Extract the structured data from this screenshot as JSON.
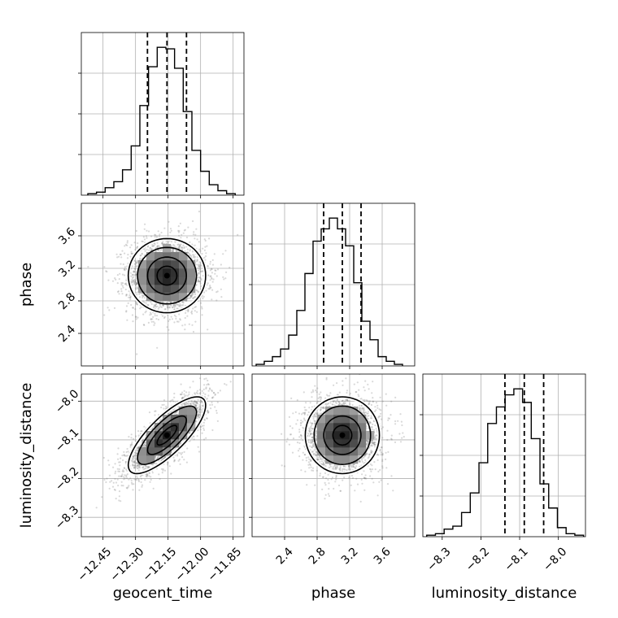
{
  "chart_data": [
    {
      "type": "histogram",
      "panel": "hist-geocent_time",
      "xlabel": "",
      "ylabel": "",
      "xlim": [
        -12.55,
        -11.8
      ],
      "bins_start": -12.52,
      "bin_width": 0.04,
      "counts": [
        1,
        2,
        5,
        9,
        17,
        33,
        60,
        86,
        99,
        98,
        85,
        56,
        30,
        16,
        7,
        3,
        1
      ],
      "quantiles": [
        -12.245,
        -12.155,
        -12.065
      ],
      "grid": true
    },
    {
      "type": "histogram",
      "panel": "hist-phase",
      "xlabel": "",
      "ylabel": "",
      "xlim": [
        2.0,
        4.0
      ],
      "bins_start": 2.05,
      "bin_width": 0.1,
      "counts": [
        1,
        3,
        6,
        11,
        20,
        36,
        60,
        81,
        89,
        96,
        89,
        78,
        54,
        29,
        17,
        6,
        3,
        1
      ],
      "quantiles": [
        2.88,
        3.11,
        3.34
      ],
      "grid": true
    },
    {
      "type": "histogram",
      "panel": "hist-luminosity_distance",
      "xlabel": "luminosity_distance",
      "ylabel": "",
      "xlim": [
        -8.35,
        -7.93
      ],
      "bins_start": -8.34,
      "bin_width": 0.0225,
      "counts": [
        1,
        2,
        5,
        7,
        16,
        29,
        49,
        75,
        86,
        94,
        98,
        89,
        65,
        35,
        19,
        6,
        2,
        1
      ],
      "quantiles": [
        -8.138,
        -8.088,
        -8.038
      ],
      "grid": true
    },
    {
      "type": "scatter-density",
      "panel": "phase-vs-geocent_time",
      "xlabel": "",
      "ylabel": "phase",
      "xlim": [
        -12.55,
        -11.8
      ],
      "ylim": [
        2.0,
        4.0
      ],
      "center": [
        -12.155,
        3.11
      ],
      "spread": [
        0.09,
        0.23
      ],
      "correlation": 0.0,
      "contour_levels": [
        0.12,
        0.39,
        0.68,
        0.86
      ],
      "grid": true
    },
    {
      "type": "scatter-density",
      "panel": "luminosity_distance-vs-geocent_time",
      "xlabel": "geocent_time",
      "ylabel": "luminosity_distance",
      "xlim": [
        -12.55,
        -11.8
      ],
      "ylim": [
        -8.35,
        -7.93
      ],
      "center": [
        -12.155,
        -8.088
      ],
      "spread": [
        0.09,
        0.05
      ],
      "correlation": 0.78,
      "contour_levels": [
        0.12,
        0.39,
        0.68,
        0.86
      ],
      "grid": true
    },
    {
      "type": "scatter-density",
      "panel": "luminosity_distance-vs-phase",
      "xlabel": "phase",
      "ylabel": "",
      "xlim": [
        2.0,
        4.0
      ],
      "ylim": [
        -8.35,
        -7.93
      ],
      "center": [
        3.11,
        -8.088
      ],
      "spread": [
        0.23,
        0.05
      ],
      "correlation": 0.0,
      "contour_levels": [
        0.12,
        0.39,
        0.68,
        0.86
      ],
      "grid": true
    }
  ],
  "labels": {
    "x_geocent_time": "geocent_time",
    "x_phase": "phase",
    "x_luminosity_distance": "luminosity_distance",
    "y_phase": "phase",
    "y_luminosity_distance": "luminosity_distance"
  },
  "ticks": {
    "geocent_time": [
      "−12.45",
      "−12.30",
      "−12.15",
      "−12.00",
      "−11.85"
    ],
    "geocent_time_values": [
      -12.45,
      -12.3,
      -12.15,
      -12.0,
      -11.85
    ],
    "phase": [
      "2.4",
      "2.8",
      "3.2",
      "3.6"
    ],
    "phase_values": [
      2.4,
      2.8,
      3.2,
      3.6
    ],
    "luminosity_distance": [
      "−8.3",
      "−8.2",
      "−8.1",
      "−8.0"
    ],
    "luminosity_distance_values": [
      -8.3,
      -8.2,
      -8.1,
      -8.0
    ]
  }
}
